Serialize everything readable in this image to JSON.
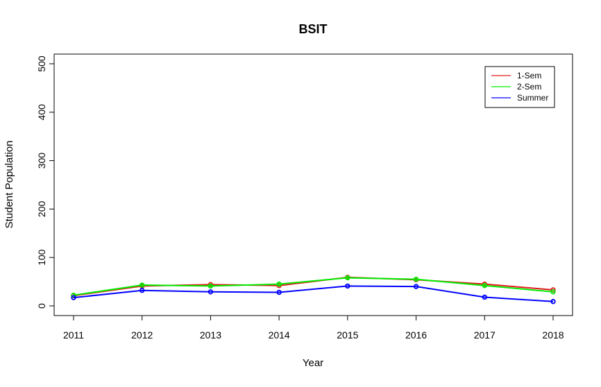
{
  "chart_data": {
    "type": "line",
    "title": "BSIT",
    "xlabel": "Year",
    "ylabel": "Student Population",
    "categories": [
      "2011",
      "2012",
      "2013",
      "2014",
      "2015",
      "2016",
      "2017",
      "2018"
    ],
    "ylim": [
      -20,
      520
    ],
    "yticks": [
      "0",
      "100",
      "200",
      "300",
      "400",
      "500"
    ],
    "grid": false,
    "legend_position": "top-right",
    "series": [
      {
        "name": "1-Sem",
        "color": "#e31a1c",
        "values": [
          21,
          41,
          44,
          42,
          59,
          54,
          45,
          33
        ]
      },
      {
        "name": "2-Sem",
        "color": "#00ee00",
        "values": [
          22,
          43,
          41,
          45,
          58,
          55,
          42,
          29
        ]
      },
      {
        "name": "Summer",
        "color": "#0000ff",
        "values": [
          17,
          32,
          29,
          28,
          41,
          40,
          18,
          9
        ]
      }
    ]
  }
}
